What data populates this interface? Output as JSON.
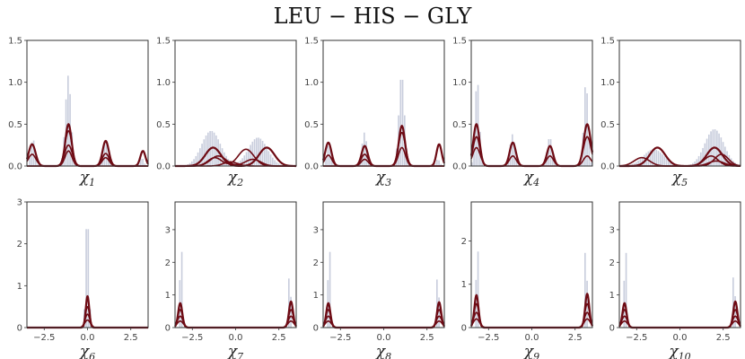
{
  "title": "LEU − HIS − GLY",
  "colors": {
    "histogram": "#c9cedd",
    "curve": "#6e0b14",
    "axis": "#333333"
  },
  "x_range": [
    -3.5,
    3.5
  ],
  "x_ticks": [
    -2.5,
    0.0,
    2.5
  ],
  "x_tick_labels": [
    "−2.5",
    "0.0",
    "2.5"
  ],
  "chart_data": [
    {
      "type": "histogram-with-density",
      "xlabel": "χ",
      "xsub": "1",
      "ylim": [
        0,
        1.5
      ],
      "yticks": [
        0,
        0.5,
        1.0,
        1.5
      ],
      "ytick_labels": [
        "0.0",
        "0.5",
        "1.0",
        "1.5"
      ],
      "show_x_ticks": false,
      "hist_modes": [
        {
          "mu": -3.14,
          "sigma": 0.12,
          "amp": 0.33
        },
        {
          "mu": 3.14,
          "sigma": 0.12,
          "amp": 0.1
        },
        {
          "mu": -1.1,
          "sigma": 0.16,
          "amp": 1.08
        },
        {
          "mu": 1.05,
          "sigma": 0.14,
          "amp": 0.32
        }
      ],
      "curves": [
        [
          {
            "mu": -3.2,
            "sigma": 0.2,
            "amp": 0.26
          },
          {
            "mu": -1.1,
            "sigma": 0.18,
            "amp": 0.5
          },
          {
            "mu": 1.05,
            "sigma": 0.18,
            "amp": 0.3
          },
          {
            "mu": 3.2,
            "sigma": 0.15,
            "amp": 0.18
          }
        ],
        [
          {
            "mu": -3.2,
            "sigma": 0.22,
            "amp": 0.14
          },
          {
            "mu": -1.1,
            "sigma": 0.2,
            "amp": 0.42
          },
          {
            "mu": 1.05,
            "sigma": 0.2,
            "amp": 0.1
          }
        ],
        [
          {
            "mu": -1.1,
            "sigma": 0.22,
            "amp": 0.25
          }
        ],
        [
          {
            "mu": -1.1,
            "sigma": 0.2,
            "amp": 0.18
          },
          {
            "mu": 1.05,
            "sigma": 0.2,
            "amp": 0.15
          }
        ]
      ]
    },
    {
      "type": "histogram-with-density",
      "xlabel": "χ",
      "xsub": "2",
      "ylim": [
        0,
        1.5
      ],
      "yticks": [
        0,
        0.5,
        1.0,
        1.5
      ],
      "ytick_labels": [
        "0.0",
        "0.5",
        "1.0",
        "1.5"
      ],
      "show_x_ticks": false,
      "hist_modes": [
        {
          "mu": -1.4,
          "sigma": 0.55,
          "amp": 0.42
        },
        {
          "mu": 1.3,
          "sigma": 0.55,
          "amp": 0.34
        }
      ],
      "curves": [
        [
          {
            "mu": -1.3,
            "sigma": 0.45,
            "amp": 0.22
          },
          {
            "mu": 1.8,
            "sigma": 0.45,
            "amp": 0.22
          }
        ],
        [
          {
            "mu": -1.2,
            "sigma": 0.4,
            "amp": 0.1
          },
          {
            "mu": 0.6,
            "sigma": 0.45,
            "amp": 0.2
          }
        ],
        [
          {
            "mu": -1.0,
            "sigma": 0.45,
            "amp": 0.12
          },
          {
            "mu": 1.0,
            "sigma": 0.45,
            "amp": 0.08
          }
        ],
        [
          {
            "mu": -0.3,
            "sigma": 0.4,
            "amp": 0.05
          }
        ]
      ]
    },
    {
      "type": "histogram-with-density",
      "xlabel": "χ",
      "xsub": "3",
      "ylim": [
        0,
        1.5
      ],
      "yticks": [
        0,
        0.5,
        1.0,
        1.5
      ],
      "ytick_labels": [
        "0.0",
        "0.5",
        "1.0",
        "1.5"
      ],
      "show_x_ticks": false,
      "hist_modes": [
        {
          "mu": -3.14,
          "sigma": 0.12,
          "amp": 0.28
        },
        {
          "mu": 3.14,
          "sigma": 0.12,
          "amp": 0.08
        },
        {
          "mu": -1.1,
          "sigma": 0.14,
          "amp": 0.4
        },
        {
          "mu": 1.05,
          "sigma": 0.16,
          "amp": 1.1
        }
      ],
      "curves": [
        [
          {
            "mu": -3.2,
            "sigma": 0.18,
            "amp": 0.28
          },
          {
            "mu": -1.1,
            "sigma": 0.18,
            "amp": 0.24
          },
          {
            "mu": 1.05,
            "sigma": 0.18,
            "amp": 0.48
          },
          {
            "mu": 3.2,
            "sigma": 0.15,
            "amp": 0.26
          }
        ],
        [
          {
            "mu": -3.2,
            "sigma": 0.2,
            "amp": 0.13
          },
          {
            "mu": -1.1,
            "sigma": 0.2,
            "amp": 0.14
          },
          {
            "mu": 1.05,
            "sigma": 0.2,
            "amp": 0.4
          }
        ],
        [
          {
            "mu": 1.05,
            "sigma": 0.2,
            "amp": 0.22
          }
        ],
        [
          {
            "mu": -1.1,
            "sigma": 0.2,
            "amp": 0.08
          }
        ]
      ]
    },
    {
      "type": "histogram-with-density",
      "xlabel": "χ",
      "xsub": "4",
      "ylim": [
        0,
        1.5
      ],
      "yticks": [
        0,
        0.5,
        1.0,
        1.5
      ],
      "ytick_labels": [
        "0.0",
        "0.5",
        "1.0",
        "1.5"
      ],
      "show_x_ticks": false,
      "hist_modes": [
        {
          "mu": -3.14,
          "sigma": 0.12,
          "amp": 1.05
        },
        {
          "mu": 3.14,
          "sigma": 0.12,
          "amp": 1.02
        },
        {
          "mu": -1.1,
          "sigma": 0.14,
          "amp": 0.38
        },
        {
          "mu": 1.05,
          "sigma": 0.14,
          "amp": 0.35
        }
      ],
      "curves": [
        [
          {
            "mu": -3.2,
            "sigma": 0.18,
            "amp": 0.5
          },
          {
            "mu": -1.1,
            "sigma": 0.18,
            "amp": 0.28
          },
          {
            "mu": 1.05,
            "sigma": 0.18,
            "amp": 0.24
          },
          {
            "mu": 3.2,
            "sigma": 0.2,
            "amp": 0.5
          }
        ],
        [
          {
            "mu": -3.2,
            "sigma": 0.2,
            "amp": 0.35
          },
          {
            "mu": -1.1,
            "sigma": 0.2,
            "amp": 0.12
          },
          {
            "mu": 1.05,
            "sigma": 0.2,
            "amp": 0.12
          },
          {
            "mu": 3.2,
            "sigma": 0.22,
            "amp": 0.35
          }
        ],
        [
          {
            "mu": -3.2,
            "sigma": 0.22,
            "amp": 0.22
          },
          {
            "mu": 3.2,
            "sigma": 0.22,
            "amp": 0.12
          }
        ]
      ]
    },
    {
      "type": "histogram-with-density",
      "xlabel": "χ",
      "xsub": "5",
      "ylim": [
        0,
        1.5
      ],
      "yticks": [
        0,
        0.5,
        1.0,
        1.5
      ],
      "ytick_labels": [
        "0.0",
        "0.5",
        "1.0",
        "1.5"
      ],
      "show_x_ticks": false,
      "hist_modes": [
        {
          "mu": -1.5,
          "sigma": 0.6,
          "amp": 0.2
        },
        {
          "mu": 2.0,
          "sigma": 0.55,
          "amp": 0.44
        }
      ],
      "curves": [
        [
          {
            "mu": -1.3,
            "sigma": 0.45,
            "amp": 0.22
          },
          {
            "mu": 2.0,
            "sigma": 0.45,
            "amp": 0.22
          }
        ],
        [
          {
            "mu": -2.2,
            "sigma": 0.45,
            "amp": 0.1
          },
          {
            "mu": 1.8,
            "sigma": 0.4,
            "amp": 0.12
          }
        ],
        [
          {
            "mu": 2.1,
            "sigma": 0.45,
            "amp": 0.06
          }
        ],
        [
          {
            "mu": 2.4,
            "sigma": 0.4,
            "amp": 0.14
          }
        ]
      ]
    },
    {
      "type": "histogram-with-density",
      "xlabel": "χ",
      "xsub": "6",
      "ylim": [
        0,
        3
      ],
      "yticks": [
        0,
        1,
        2,
        3
      ],
      "ytick_labels": [
        "0",
        "1",
        "2",
        "3"
      ],
      "show_x_ticks": true,
      "hist_modes": [
        {
          "mu": 0.0,
          "sigma": 0.09,
          "amp": 2.9
        }
      ],
      "curves": [
        [
          {
            "mu": 0.0,
            "sigma": 0.1,
            "amp": 0.75
          }
        ],
        [
          {
            "mu": 0.0,
            "sigma": 0.12,
            "amp": 0.5
          }
        ],
        [
          {
            "mu": 0.0,
            "sigma": 0.14,
            "amp": 0.32
          }
        ],
        [
          {
            "mu": 0.0,
            "sigma": 0.16,
            "amp": 0.18
          }
        ]
      ]
    },
    {
      "type": "histogram-with-density",
      "xlabel": "χ",
      "xsub": "7",
      "ylim": [
        0,
        3.85
      ],
      "yticks": [
        0,
        1,
        2,
        3
      ],
      "ytick_labels": [
        "0",
        "1",
        "2",
        "3"
      ],
      "show_x_ticks": true,
      "hist_modes": [
        {
          "mu": -3.14,
          "sigma": 0.05,
          "amp": 3.7
        },
        {
          "mu": 3.14,
          "sigma": 0.05,
          "amp": 2.4
        }
      ],
      "curves": [
        [
          {
            "mu": -3.2,
            "sigma": 0.12,
            "amp": 0.75
          },
          {
            "mu": 3.2,
            "sigma": 0.12,
            "amp": 0.8
          }
        ],
        [
          {
            "mu": -3.2,
            "sigma": 0.14,
            "amp": 0.55
          },
          {
            "mu": 3.2,
            "sigma": 0.14,
            "amp": 0.55
          }
        ],
        [
          {
            "mu": -3.2,
            "sigma": 0.16,
            "amp": 0.35
          },
          {
            "mu": 3.2,
            "sigma": 0.16,
            "amp": 0.35
          }
        ],
        [
          {
            "mu": -3.2,
            "sigma": 0.18,
            "amp": 0.2
          },
          {
            "mu": 3.2,
            "sigma": 0.18,
            "amp": 0.2
          }
        ]
      ]
    },
    {
      "type": "histogram-with-density",
      "xlabel": "χ",
      "xsub": "8",
      "ylim": [
        0,
        3.85
      ],
      "yticks": [
        0,
        1,
        2,
        3
      ],
      "ytick_labels": [
        "0",
        "1",
        "2",
        "3"
      ],
      "show_x_ticks": true,
      "hist_modes": [
        {
          "mu": -3.14,
          "sigma": 0.05,
          "amp": 3.7
        },
        {
          "mu": 3.14,
          "sigma": 0.05,
          "amp": 2.35
        }
      ],
      "curves": [
        [
          {
            "mu": -3.2,
            "sigma": 0.12,
            "amp": 0.75
          },
          {
            "mu": 3.2,
            "sigma": 0.12,
            "amp": 0.78
          }
        ],
        [
          {
            "mu": -3.2,
            "sigma": 0.14,
            "amp": 0.55
          },
          {
            "mu": 3.2,
            "sigma": 0.14,
            "amp": 0.55
          }
        ],
        [
          {
            "mu": -3.2,
            "sigma": 0.16,
            "amp": 0.35
          },
          {
            "mu": 3.2,
            "sigma": 0.16,
            "amp": 0.35
          }
        ],
        [
          {
            "mu": -3.2,
            "sigma": 0.18,
            "amp": 0.2
          },
          {
            "mu": 3.2,
            "sigma": 0.18,
            "amp": 0.2
          }
        ]
      ]
    },
    {
      "type": "histogram-with-density",
      "xlabel": "χ",
      "xsub": "9",
      "ylim": [
        0,
        2.9
      ],
      "yticks": [
        0,
        1,
        2
      ],
      "ytick_labels": [
        "0",
        "1",
        "2"
      ],
      "show_x_ticks": true,
      "hist_modes": [
        {
          "mu": -3.14,
          "sigma": 0.05,
          "amp": 2.8
        },
        {
          "mu": 3.14,
          "sigma": 0.05,
          "amp": 2.75
        }
      ],
      "curves": [
        [
          {
            "mu": -3.2,
            "sigma": 0.12,
            "amp": 0.75
          },
          {
            "mu": 3.2,
            "sigma": 0.12,
            "amp": 0.78
          }
        ],
        [
          {
            "mu": -3.2,
            "sigma": 0.14,
            "amp": 0.55
          },
          {
            "mu": 3.2,
            "sigma": 0.14,
            "amp": 0.55
          }
        ],
        [
          {
            "mu": -3.2,
            "sigma": 0.16,
            "amp": 0.35
          },
          {
            "mu": 3.2,
            "sigma": 0.16,
            "amp": 0.35
          }
        ],
        [
          {
            "mu": -3.2,
            "sigma": 0.18,
            "amp": 0.2
          },
          {
            "mu": 3.2,
            "sigma": 0.18,
            "amp": 0.2
          }
        ]
      ]
    },
    {
      "type": "histogram-with-density",
      "xlabel": "χ",
      "xsub": "10",
      "ylim": [
        0,
        3.85
      ],
      "yticks": [
        0,
        1,
        2,
        3
      ],
      "ytick_labels": [
        "0",
        "1",
        "2",
        "3"
      ],
      "show_x_ticks": true,
      "hist_modes": [
        {
          "mu": -3.14,
          "sigma": 0.05,
          "amp": 3.65
        },
        {
          "mu": 3.14,
          "sigma": 0.05,
          "amp": 2.45
        }
      ],
      "curves": [
        [
          {
            "mu": -3.2,
            "sigma": 0.12,
            "amp": 0.75
          },
          {
            "mu": 3.2,
            "sigma": 0.12,
            "amp": 0.8
          }
        ],
        [
          {
            "mu": -3.2,
            "sigma": 0.14,
            "amp": 0.55
          },
          {
            "mu": 3.2,
            "sigma": 0.14,
            "amp": 0.55
          }
        ],
        [
          {
            "mu": -3.2,
            "sigma": 0.16,
            "amp": 0.35
          },
          {
            "mu": 3.2,
            "sigma": 0.16,
            "amp": 0.35
          }
        ],
        [
          {
            "mu": -3.2,
            "sigma": 0.18,
            "amp": 0.2
          },
          {
            "mu": 3.2,
            "sigma": 0.18,
            "amp": 0.2
          }
        ]
      ]
    }
  ]
}
